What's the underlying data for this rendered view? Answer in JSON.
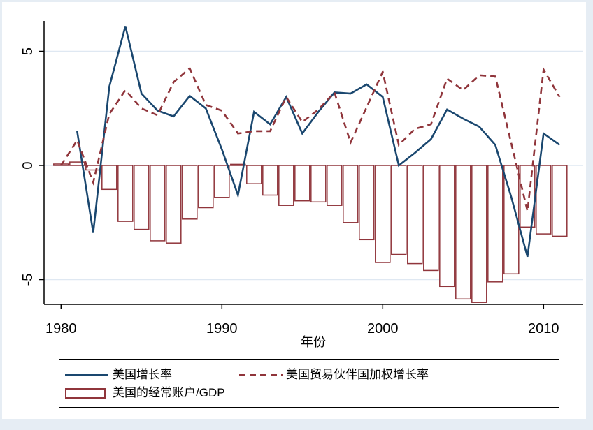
{
  "figure": {
    "background": "#ffffff",
    "frame_color": "#e6edf4",
    "accent_navy": "#1a476f",
    "accent_maroon": "#90353b",
    "gridline_color": "#dfe8f2"
  },
  "chart_data": {
    "type": "combo",
    "x": [
      1980,
      1981,
      1982,
      1983,
      1984,
      1985,
      1986,
      1987,
      1988,
      1989,
      1990,
      1991,
      1992,
      1993,
      1994,
      1995,
      1996,
      1997,
      1998,
      1999,
      2000,
      2001,
      2002,
      2003,
      2004,
      2005,
      2006,
      2007,
      2008,
      2009,
      2010,
      2011
    ],
    "series": [
      {
        "name": "美国增长率",
        "type": "line",
        "style": "solid",
        "color": "#1a476f",
        "values": [
          null,
          1.5,
          -2.95,
          3.45,
          6.1,
          3.15,
          2.4,
          2.15,
          3.05,
          2.5,
          0.7,
          -1.3,
          2.35,
          1.8,
          3.0,
          1.4,
          2.35,
          3.2,
          3.15,
          3.55,
          3.0,
          0.0,
          0.55,
          1.15,
          2.45,
          2.05,
          1.7,
          0.9,
          -1.4,
          -4.0,
          1.4,
          0.9
        ]
      },
      {
        "name": "美国贸易伙伴国加权增长率",
        "type": "line",
        "style": "dashed",
        "color": "#90353b",
        "values": [
          0.0,
          1.1,
          -0.75,
          2.25,
          3.3,
          2.5,
          2.2,
          3.65,
          4.25,
          2.65,
          2.4,
          1.4,
          1.5,
          1.5,
          3.0,
          1.9,
          2.45,
          3.2,
          1.0,
          2.55,
          4.1,
          0.9,
          1.6,
          1.8,
          3.8,
          3.3,
          3.95,
          3.9,
          0.95,
          -2.0,
          4.2,
          3.0
        ]
      },
      {
        "name": "美国的经常账户/GDP",
        "type": "bar",
        "style": "hollow",
        "color": "#90353b",
        "values": [
          0.06,
          0.15,
          -0.2,
          -1.05,
          -2.45,
          -2.8,
          -3.3,
          -3.4,
          -2.35,
          -1.85,
          -1.4,
          0.05,
          -0.8,
          -1.3,
          -1.75,
          -1.55,
          -1.6,
          -1.75,
          -2.5,
          -3.25,
          -4.25,
          -3.9,
          -4.3,
          -4.6,
          -5.3,
          -5.85,
          -6.0,
          -5.1,
          -4.75,
          -2.7,
          -3.0,
          -3.1
        ]
      }
    ],
    "title": "",
    "xlabel": "年份",
    "ylabel": "",
    "x_ticks": [
      1980,
      1990,
      2000,
      2010
    ],
    "y_ticks": [
      5,
      0,
      -5
    ],
    "ylim": [
      -6.2,
      6.35
    ],
    "xlim": [
      1978.9,
      2012.4
    ],
    "grid": true,
    "legend_position": "bottom"
  }
}
